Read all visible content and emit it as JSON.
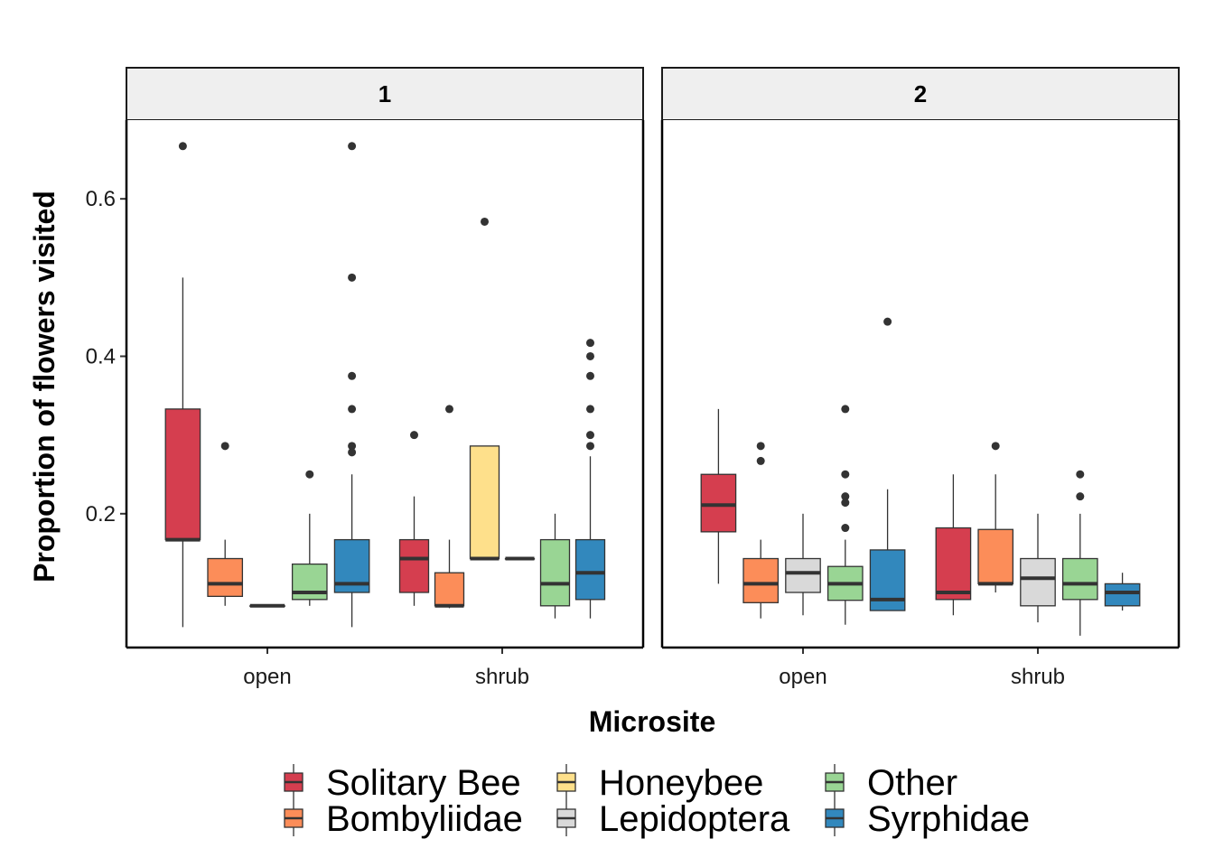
{
  "chart_data": {
    "type": "boxplot",
    "xlabel": "Microsite",
    "ylabel": "Proportion of flowers visited",
    "ylim": [
      0.03,
      0.7
    ],
    "yticks": [
      0.2,
      0.4,
      0.6
    ],
    "ytick_labels": [
      "0.2",
      "0.4",
      "0.6"
    ],
    "categories": [
      "open",
      "shrub"
    ],
    "legend_position": "bottom",
    "legend": [
      {
        "name": "Solitary Bee",
        "color": "#d53e4f"
      },
      {
        "name": "Bombyliidae",
        "color": "#fc8d59"
      },
      {
        "name": "Honeybee",
        "color": "#fee08b"
      },
      {
        "name": "Lepidoptera",
        "color": "#d9d9d9"
      },
      {
        "name": "Other",
        "color": "#99d594"
      },
      {
        "name": "Syrphidae",
        "color": "#3288bd"
      }
    ],
    "panels": [
      {
        "strip": "1",
        "groups": [
          {
            "category": "open",
            "slots": 5,
            "boxes": [
              {
                "series": "Solitary Bee",
                "slot": 0,
                "whisker_low": 0.056,
                "q1": 0.167,
                "median": 0.167,
                "q3": 0.333,
                "whisker_high": 0.5,
                "outliers": [
                  0.667
                ]
              },
              {
                "series": "Bombyliidae",
                "slot": 1,
                "whisker_low": 0.083,
                "q1": 0.095,
                "median": 0.111,
                "q3": 0.143,
                "whisker_high": 0.167,
                "outliers": [
                  0.286
                ]
              },
              {
                "series": "Lepidoptera",
                "slot": 2,
                "whisker_low": 0.083,
                "q1": 0.083,
                "median": 0.083,
                "q3": 0.083,
                "whisker_high": 0.083,
                "outliers": []
              },
              {
                "series": "Other",
                "slot": 3,
                "whisker_low": 0.083,
                "q1": 0.091,
                "median": 0.1,
                "q3": 0.136,
                "whisker_high": 0.2,
                "outliers": [
                  0.25
                ]
              },
              {
                "series": "Syrphidae",
                "slot": 4,
                "whisker_low": 0.056,
                "q1": 0.1,
                "median": 0.111,
                "q3": 0.167,
                "whisker_high": 0.25,
                "outliers": [
                  0.667,
                  0.5,
                  0.375,
                  0.333,
                  0.286,
                  0.278
                ]
              }
            ]
          },
          {
            "category": "shrub",
            "slots": 6,
            "boxes": [
              {
                "series": "Solitary Bee",
                "slot": 0,
                "whisker_low": 0.083,
                "q1": 0.1,
                "median": 0.143,
                "q3": 0.167,
                "whisker_high": 0.222,
                "outliers": [
                  0.3
                ]
              },
              {
                "series": "Bombyliidae",
                "slot": 1,
                "whisker_low": 0.08,
                "q1": 0.083,
                "median": 0.083,
                "q3": 0.125,
                "whisker_high": 0.167,
                "outliers": [
                  0.333
                ]
              },
              {
                "series": "Honeybee",
                "slot": 2,
                "whisker_low": 0.143,
                "q1": 0.143,
                "median": 0.143,
                "q3": 0.286,
                "whisker_high": 0.286,
                "outliers": [
                  0.571
                ]
              },
              {
                "series": "Lepidoptera",
                "slot": 3,
                "whisker_low": 0.143,
                "q1": 0.143,
                "median": 0.143,
                "q3": 0.143,
                "whisker_high": 0.143,
                "outliers": []
              },
              {
                "series": "Other",
                "slot": 4,
                "whisker_low": 0.067,
                "q1": 0.083,
                "median": 0.111,
                "q3": 0.167,
                "whisker_high": 0.2,
                "outliers": []
              },
              {
                "series": "Syrphidae",
                "slot": 5,
                "whisker_low": 0.067,
                "q1": 0.091,
                "median": 0.125,
                "q3": 0.167,
                "whisker_high": 0.273,
                "outliers": [
                  0.417,
                  0.4,
                  0.375,
                  0.333,
                  0.3,
                  0.286
                ]
              }
            ]
          }
        ]
      },
      {
        "strip": "2",
        "groups": [
          {
            "category": "open",
            "slots": 5,
            "boxes": [
              {
                "series": "Solitary Bee",
                "slot": 0,
                "whisker_low": 0.111,
                "q1": 0.177,
                "median": 0.211,
                "q3": 0.25,
                "whisker_high": 0.333,
                "outliers": []
              },
              {
                "series": "Bombyliidae",
                "slot": 1,
                "whisker_low": 0.067,
                "q1": 0.087,
                "median": 0.111,
                "q3": 0.143,
                "whisker_high": 0.167,
                "outliers": [
                  0.286,
                  0.267
                ]
              },
              {
                "series": "Lepidoptera",
                "slot": 2,
                "whisker_low": 0.071,
                "q1": 0.1,
                "median": 0.125,
                "q3": 0.143,
                "whisker_high": 0.2,
                "outliers": []
              },
              {
                "series": "Other",
                "slot": 3,
                "whisker_low": 0.059,
                "q1": 0.09,
                "median": 0.111,
                "q3": 0.133,
                "whisker_high": 0.167,
                "outliers": [
                  0.333,
                  0.25,
                  0.222,
                  0.214,
                  0.182
                ]
              },
              {
                "series": "Syrphidae",
                "slot": 4,
                "whisker_low": 0.077,
                "q1": 0.077,
                "median": 0.091,
                "q3": 0.154,
                "whisker_high": 0.231,
                "outliers": [
                  0.444
                ]
              }
            ]
          },
          {
            "category": "shrub",
            "slots": 5,
            "boxes": [
              {
                "series": "Solitary Bee",
                "slot": 0,
                "whisker_low": 0.071,
                "q1": 0.091,
                "median": 0.1,
                "q3": 0.182,
                "whisker_high": 0.25,
                "outliers": []
              },
              {
                "series": "Bombyliidae",
                "slot": 1,
                "whisker_low": 0.1,
                "q1": 0.111,
                "median": 0.111,
                "q3": 0.18,
                "whisker_high": 0.25,
                "outliers": [
                  0.286
                ]
              },
              {
                "series": "Lepidoptera",
                "slot": 2,
                "whisker_low": 0.062,
                "q1": 0.083,
                "median": 0.118,
                "q3": 0.143,
                "whisker_high": 0.2,
                "outliers": []
              },
              {
                "series": "Other",
                "slot": 3,
                "whisker_low": 0.045,
                "q1": 0.091,
                "median": 0.111,
                "q3": 0.143,
                "whisker_high": 0.2,
                "outliers": [
                  0.25,
                  0.222
                ]
              },
              {
                "series": "Syrphidae",
                "slot": 4,
                "whisker_low": 0.077,
                "q1": 0.083,
                "median": 0.1,
                "q3": 0.111,
                "whisker_high": 0.125,
                "outliers": []
              }
            ]
          }
        ]
      }
    ]
  }
}
